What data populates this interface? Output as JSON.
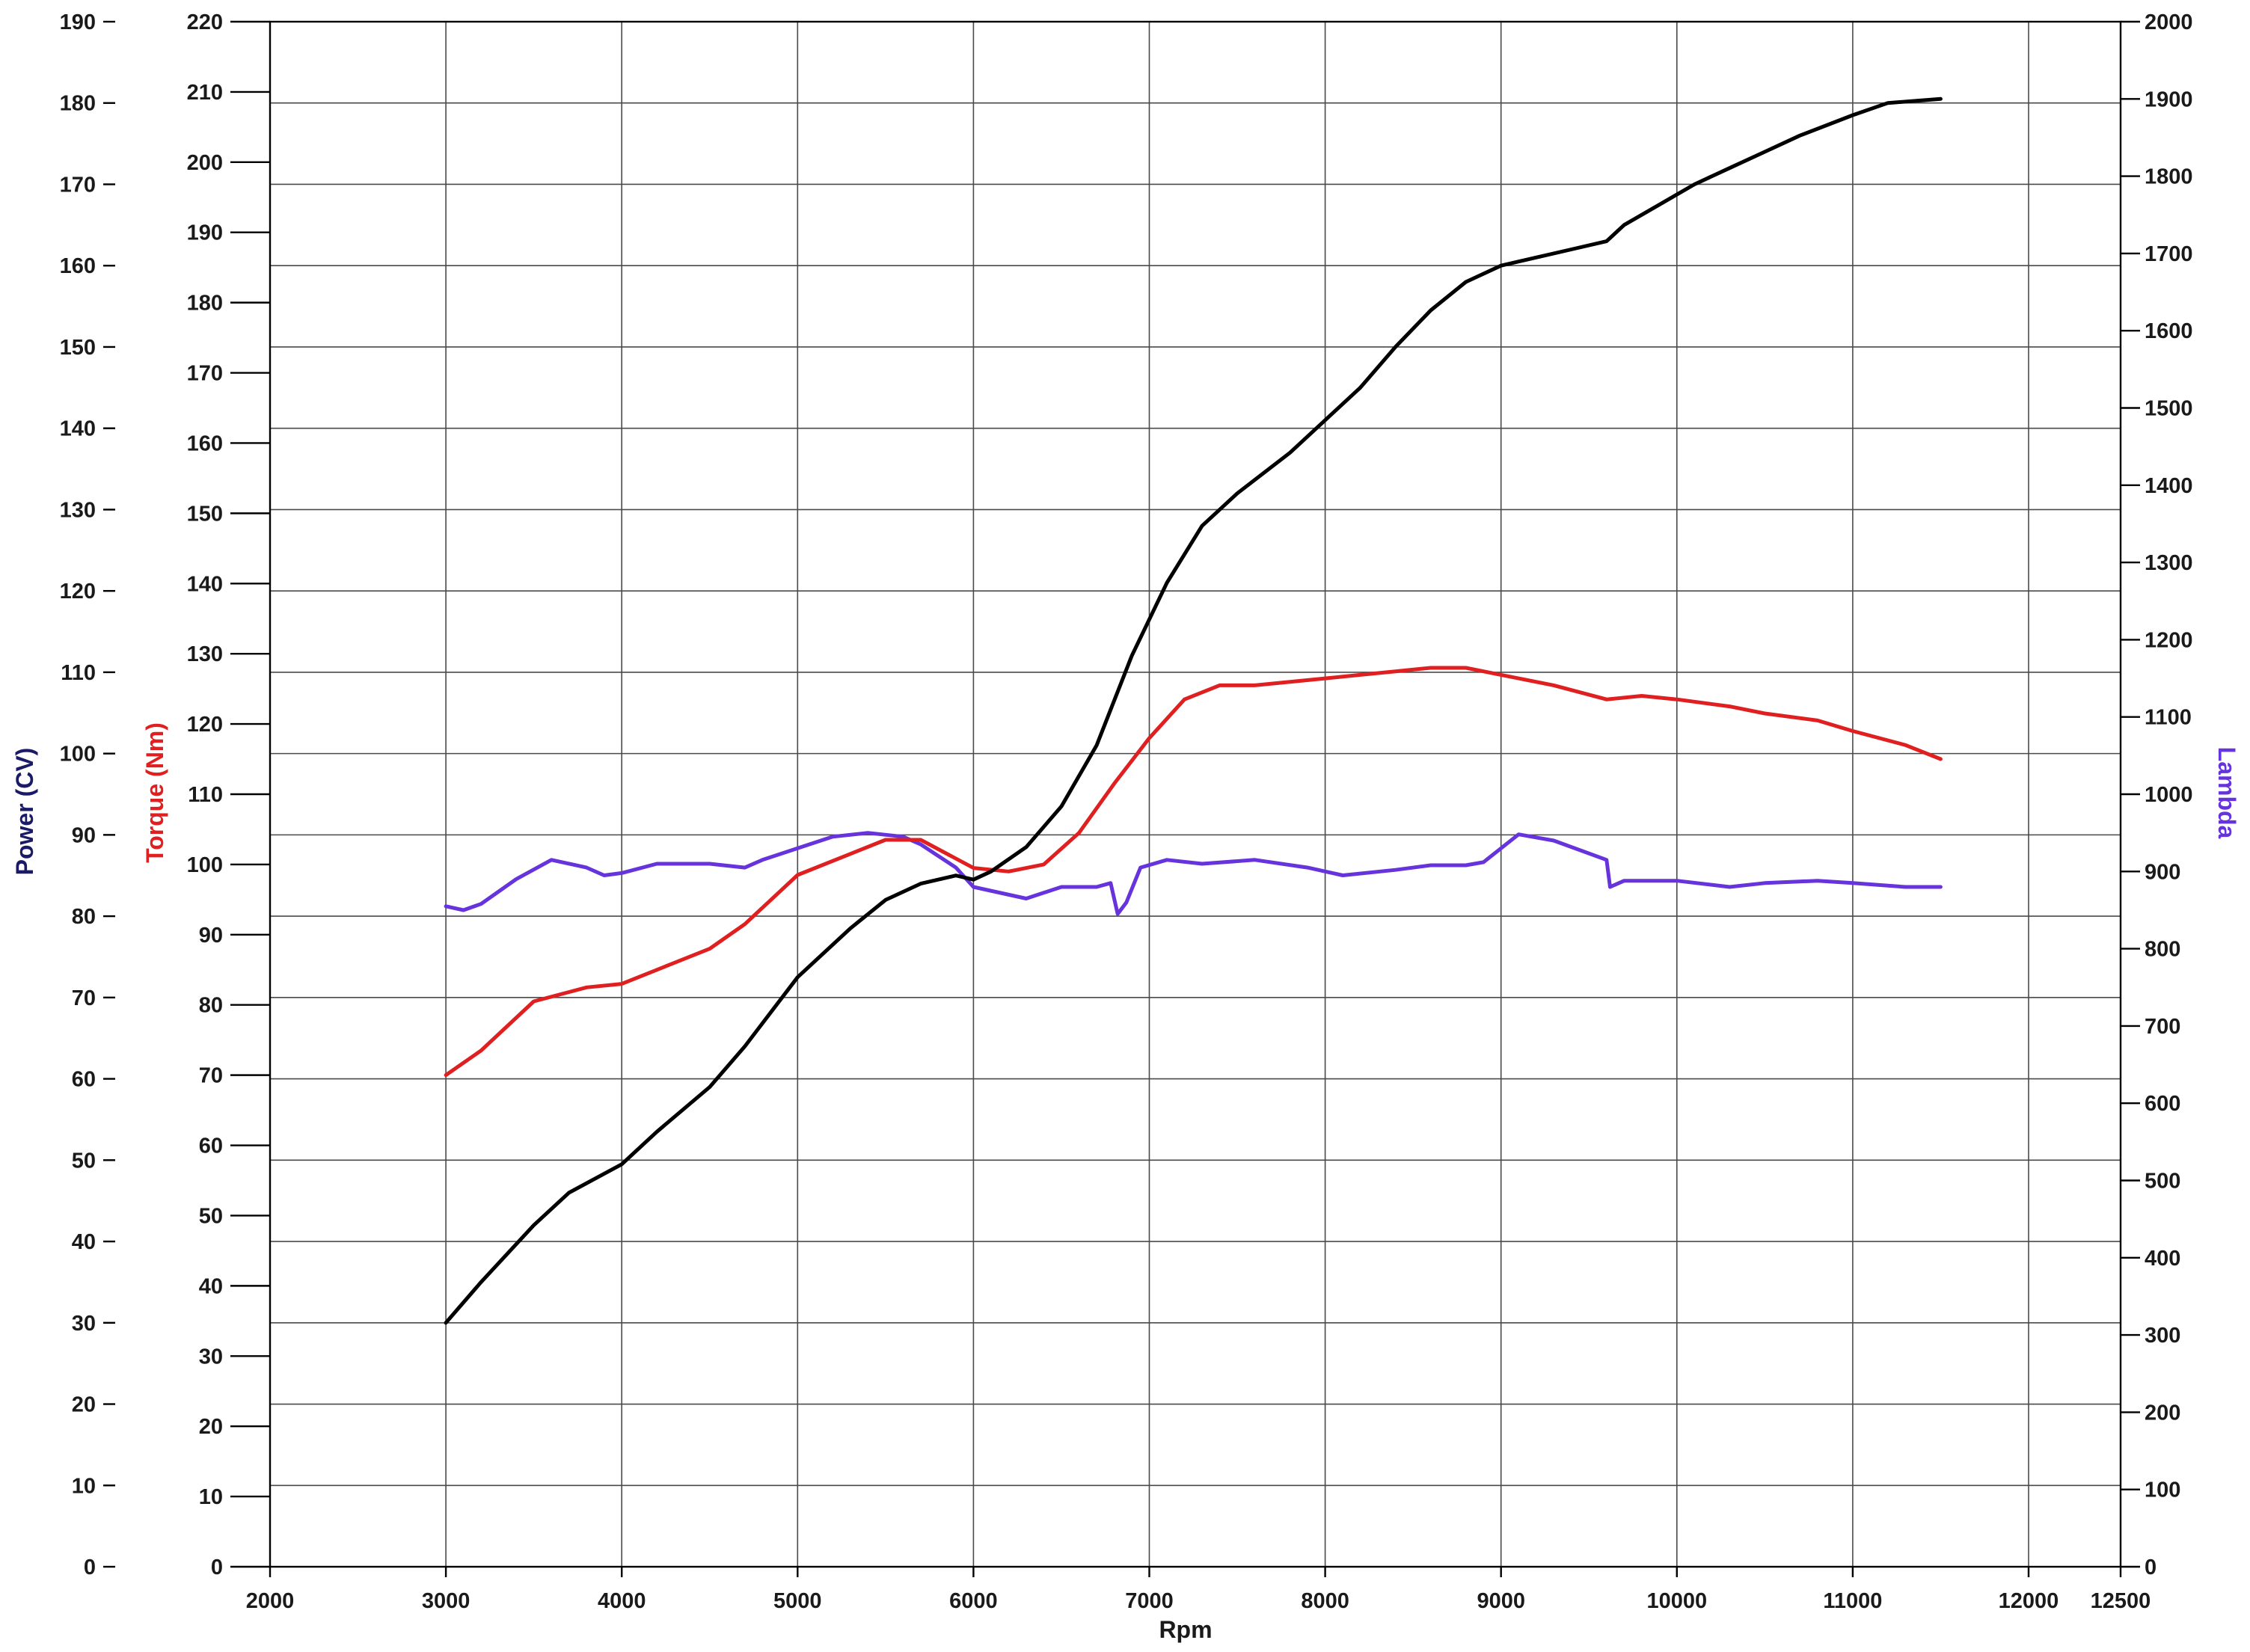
{
  "chart_data": {
    "type": "line",
    "xlabel": "Rpm",
    "x_ticks": [
      2000,
      3000,
      4000,
      5000,
      6000,
      7000,
      8000,
      9000,
      10000,
      11000,
      12000,
      12500
    ],
    "xlim": [
      2000,
      12500
    ],
    "grid": true,
    "axes": {
      "power": {
        "label": "Power (CV)",
        "color": "#1a1a66",
        "range": [
          0,
          190
        ],
        "ticks": [
          0,
          10,
          20,
          30,
          40,
          50,
          60,
          70,
          80,
          90,
          100,
          110,
          120,
          130,
          140,
          150,
          160,
          170,
          180,
          190
        ]
      },
      "torque": {
        "label": "Torque (Nm)",
        "color": "#e02020",
        "range": [
          0,
          220
        ],
        "ticks": [
          0,
          10,
          20,
          30,
          40,
          50,
          60,
          70,
          80,
          90,
          100,
          110,
          120,
          130,
          140,
          150,
          160,
          170,
          180,
          190,
          200,
          210,
          220
        ]
      },
      "lambda": {
        "label": "Lambda",
        "color": "#6633dd",
        "range": [
          0,
          2000
        ],
        "ticks": [
          0,
          100,
          200,
          300,
          400,
          500,
          600,
          700,
          800,
          900,
          1000,
          1100,
          1200,
          1300,
          1400,
          1500,
          1600,
          1700,
          1800,
          1900,
          2000
        ]
      }
    },
    "series": [
      {
        "axis": "power",
        "color": "#000000",
        "x": [
          3000,
          3200,
          3500,
          3700,
          4000,
          4200,
          4500,
          4700,
          5000,
          5300,
          5500,
          5700,
          5900,
          6000,
          6100,
          6300,
          6500,
          6700,
          6900,
          7100,
          7300,
          7500,
          7800,
          8000,
          8200,
          8400,
          8600,
          8800,
          9000,
          9200,
          9400,
          9600,
          9700,
          9900,
          10100,
          10300,
          10500,
          10700,
          11000,
          11200,
          11500
        ],
        "y": [
          30,
          35,
          42,
          46,
          49.5,
          53.5,
          59,
          64,
          72.5,
          78.5,
          82,
          84,
          85,
          84.5,
          85.5,
          88.5,
          93.5,
          101,
          112,
          121,
          128,
          132,
          137,
          141,
          145,
          150,
          154.5,
          158,
          160,
          161,
          162,
          163,
          165,
          167.5,
          170,
          172,
          174,
          176,
          178.5,
          180,
          180.5
        ]
      },
      {
        "axis": "torque",
        "color": "#e02020",
        "x": [
          3000,
          3200,
          3500,
          3800,
          4000,
          4200,
          4500,
          4700,
          5000,
          5300,
          5500,
          5700,
          6000,
          6200,
          6400,
          6600,
          6800,
          7000,
          7200,
          7400,
          7600,
          7800,
          8000,
          8200,
          8400,
          8600,
          8800,
          9000,
          9300,
          9600,
          9800,
          10000,
          10300,
          10500,
          10800,
          11000,
          11300,
          11500
        ],
        "y": [
          70,
          73.5,
          80.5,
          82.5,
          83,
          85,
          88,
          91.5,
          98.5,
          101.5,
          103.5,
          103.5,
          99.5,
          99,
          100,
          104.5,
          111.5,
          118,
          123.5,
          125.5,
          125.5,
          126,
          126.5,
          127,
          127.5,
          128,
          128,
          127,
          125.5,
          123.5,
          124,
          123.5,
          122.5,
          121.5,
          120.5,
          119,
          117,
          115
        ]
      },
      {
        "axis": "lambda",
        "color": "#6633dd",
        "x": [
          3000,
          3100,
          3200,
          3400,
          3600,
          3800,
          3900,
          4000,
          4200,
          4500,
          4700,
          4800,
          5000,
          5200,
          5400,
          5600,
          5700,
          5900,
          6000,
          6300,
          6500,
          6700,
          6780,
          6820,
          6870,
          6950,
          7100,
          7300,
          7600,
          7900,
          8100,
          8400,
          8600,
          8800,
          8900,
          9000,
          9100,
          9300,
          9600,
          9620,
          9700,
          10000,
          10300,
          10500,
          10800,
          11000,
          11300,
          11500
        ],
        "y": [
          855,
          850,
          858,
          890,
          915,
          905,
          895,
          898,
          910,
          910,
          905,
          915,
          930,
          945,
          950,
          945,
          935,
          905,
          880,
          865,
          880,
          880,
          885,
          845,
          860,
          905,
          915,
          910,
          915,
          905,
          895,
          902,
          908,
          908,
          912,
          930,
          948,
          940,
          915,
          880,
          888,
          888,
          880,
          885,
          888,
          885,
          880,
          880
        ]
      }
    ]
  }
}
